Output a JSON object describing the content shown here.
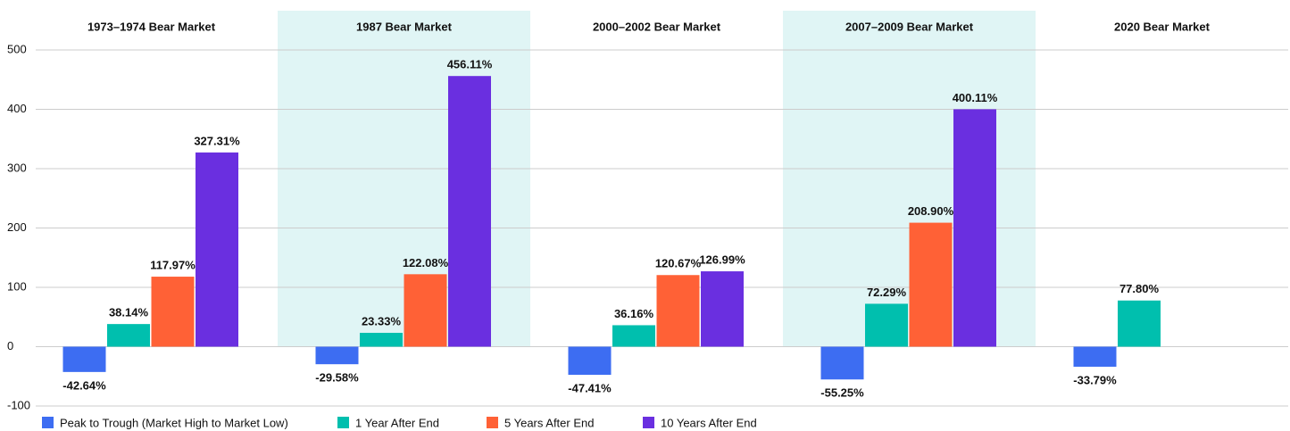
{
  "chart_data": {
    "type": "bar",
    "categories": [
      "1973–1974 Bear Market",
      "1987 Bear Market",
      "2000–2002 Bear Market",
      "2007–2009 Bear Market",
      "2020 Bear Market"
    ],
    "series": [
      {
        "name": "Peak to Trough (Market High to Market Low)",
        "color": "#3d6df2",
        "values": [
          -42.64,
          -29.58,
          -47.41,
          -55.25,
          -33.79
        ],
        "value_labels": [
          "-42.64%",
          "-29.58%",
          "-47.41%",
          "-55.25%",
          "-33.79%"
        ]
      },
      {
        "name": "1 Year After End",
        "color": "#00bfae",
        "values": [
          38.14,
          23.33,
          36.16,
          72.29,
          77.8
        ],
        "value_labels": [
          "38.14%",
          "23.33%",
          "36.16%",
          "72.29%",
          "77.80%"
        ]
      },
      {
        "name": "5 Years After End",
        "color": "#ff6136",
        "values": [
          117.97,
          122.08,
          120.67,
          208.9,
          null
        ],
        "value_labels": [
          "117.97%",
          "122.08%",
          "120.67%",
          "208.90%",
          null
        ]
      },
      {
        "name": "10 Years After End",
        "color": "#6a2fe0",
        "values": [
          327.31,
          456.11,
          126.99,
          400.11,
          null
        ],
        "value_labels": [
          "327.31%",
          "456.11%",
          "126.99%",
          "400.11%",
          null
        ]
      }
    ],
    "ylim": [
      -100,
      500
    ],
    "yticks": [
      -100,
      0,
      100,
      200,
      300,
      400,
      500
    ],
    "grid": true
  }
}
